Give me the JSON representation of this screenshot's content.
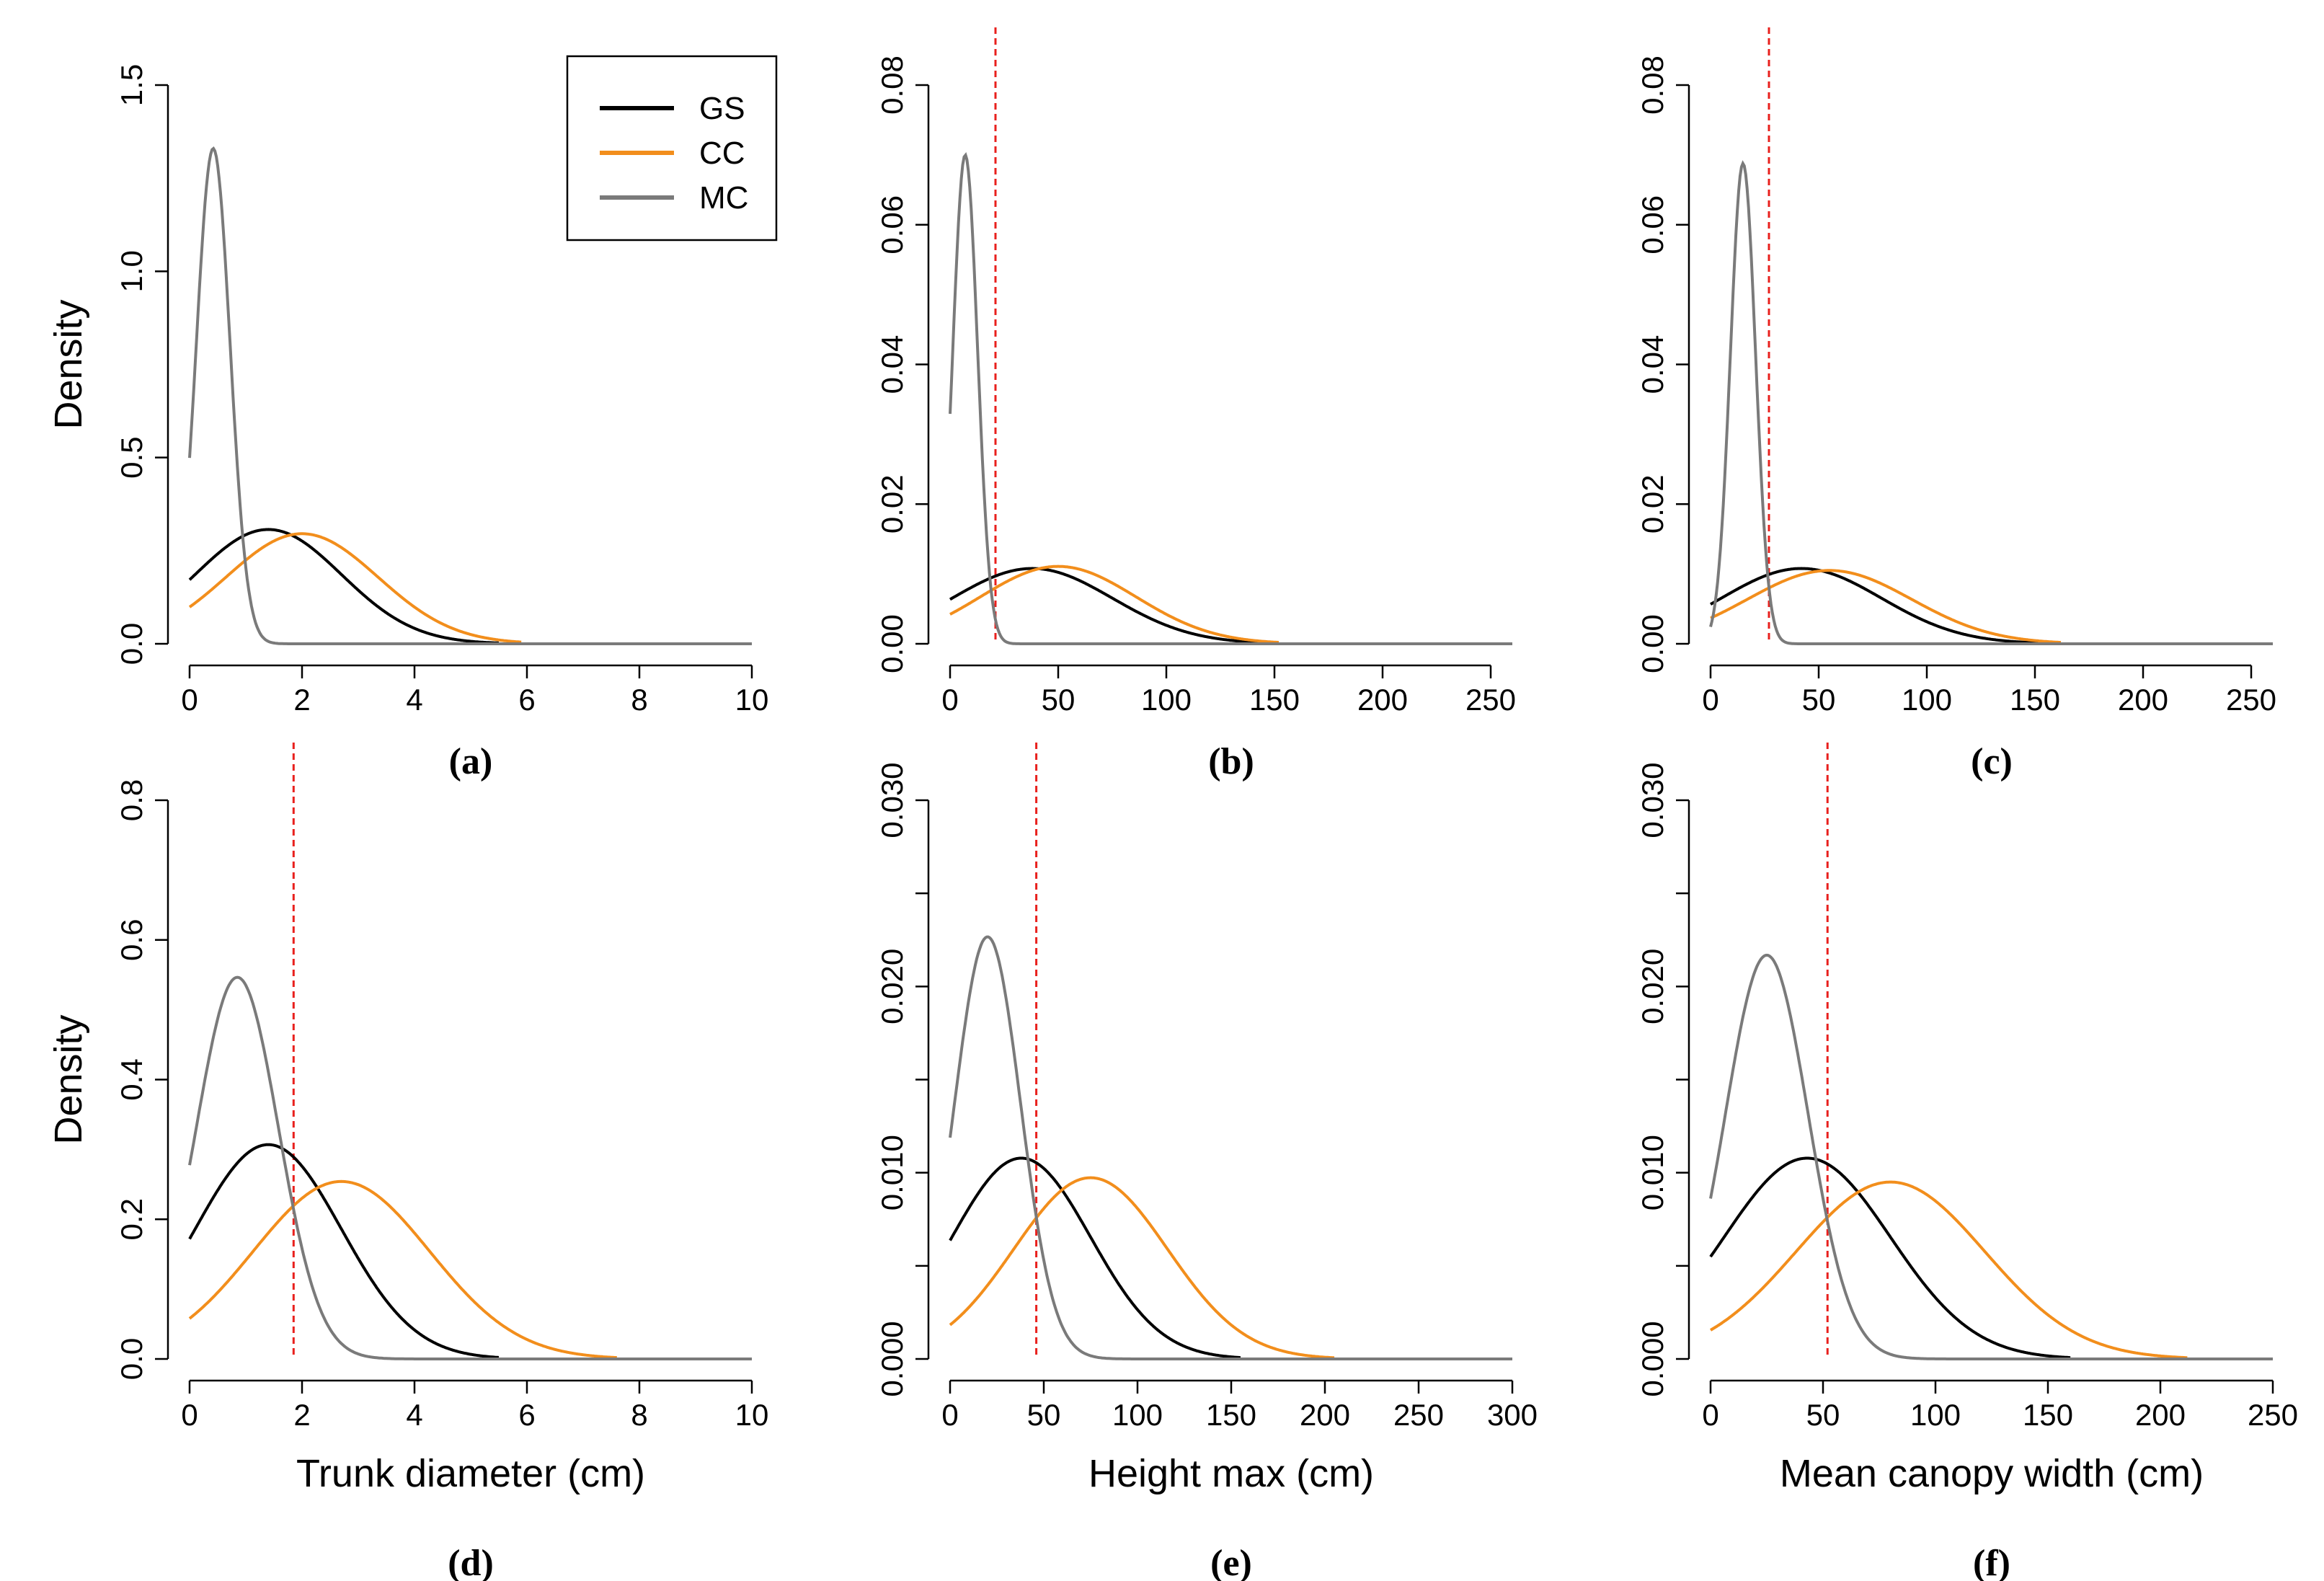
{
  "colors": {
    "GS": "#000000",
    "CC": "#f28e1c",
    "MC": "#7a7a7a",
    "threshold": "#e8201d"
  },
  "legend": {
    "placement": "top-right of panel (a)",
    "entries": [
      {
        "key": "GS",
        "label": "GS"
      },
      {
        "key": "CC",
        "label": "CC"
      },
      {
        "key": "MC",
        "label": "MC"
      }
    ]
  },
  "chart_data": [
    {
      "type": "line",
      "panel_label": "(a)",
      "xlabel": "",
      "ylabel": "Density",
      "xlim": [
        0,
        10
      ],
      "ylim": [
        0,
        1.5
      ],
      "xticks": [
        0,
        2,
        4,
        6,
        8,
        10
      ],
      "xtick_labels": [
        "0",
        "2",
        "4",
        "6",
        "8",
        "10"
      ],
      "yticks": [
        0,
        0.5,
        1.0,
        1.5
      ],
      "ytick_labels": [
        "0.0",
        "0.5",
        "1.0",
        "1.5"
      ],
      "threshold_x": null,
      "series": [
        {
          "name": "GS",
          "mean": 1.4,
          "sd": 1.3,
          "x_max": 5.5
        },
        {
          "name": "CC",
          "mean": 2.0,
          "sd": 1.35,
          "x_max": 5.9
        },
        {
          "name": "MC",
          "mean": 0.42,
          "sd": 0.3,
          "x_max": 10
        }
      ]
    },
    {
      "type": "line",
      "panel_label": "(b)",
      "xlabel": "",
      "ylabel": "",
      "xlim": [
        0,
        260
      ],
      "ylim": [
        0,
        0.08
      ],
      "xticks": [
        0,
        50,
        100,
        150,
        200,
        250
      ],
      "xtick_labels": [
        "0",
        "50",
        "100",
        "150",
        "200",
        "250"
      ],
      "yticks": [
        0,
        0.02,
        0.04,
        0.06,
        0.08
      ],
      "ytick_labels": [
        "0.00",
        "0.02",
        "0.04",
        "0.06",
        "0.08"
      ],
      "threshold_x": 21,
      "series": [
        {
          "name": "GS",
          "mean": 38,
          "sd": 37,
          "x_max": 150
        },
        {
          "name": "CC",
          "mean": 50,
          "sd": 36,
          "x_max": 152
        },
        {
          "name": "MC",
          "mean": 7,
          "sd": 5.7,
          "x_max": 260
        }
      ]
    },
    {
      "type": "line",
      "panel_label": "(c)",
      "xlabel": "",
      "ylabel": "",
      "xlim": [
        0,
        260
      ],
      "ylim": [
        0,
        0.08
      ],
      "xticks": [
        0,
        50,
        100,
        150,
        200,
        250
      ],
      "xtick_labels": [
        "0",
        "50",
        "100",
        "150",
        "200",
        "250"
      ],
      "yticks": [
        0,
        0.02,
        0.04,
        0.06,
        0.08
      ],
      "ytick_labels": [
        "0.00",
        "0.02",
        "0.04",
        "0.06",
        "0.08"
      ],
      "threshold_x": 27,
      "series": [
        {
          "name": "GS",
          "mean": 42,
          "sd": 37,
          "x_max": 160
        },
        {
          "name": "CC",
          "mean": 55,
          "sd": 38,
          "x_max": 162
        },
        {
          "name": "MC",
          "mean": 15,
          "sd": 5.8,
          "x_max": 260
        }
      ]
    },
    {
      "type": "line",
      "panel_label": "(d)",
      "xlabel": "Trunk diameter (cm)",
      "ylabel": "Density",
      "xlim": [
        0,
        10
      ],
      "ylim": [
        0,
        0.8
      ],
      "xticks": [
        0,
        2,
        4,
        6,
        8,
        10
      ],
      "xtick_labels": [
        "0",
        "2",
        "4",
        "6",
        "8",
        "10"
      ],
      "yticks": [
        0,
        0.2,
        0.4,
        0.6,
        0.8
      ],
      "ytick_labels": [
        "0.0",
        "0.2",
        "0.4",
        "0.6",
        "0.8"
      ],
      "threshold_x": 1.85,
      "series": [
        {
          "name": "GS",
          "mean": 1.4,
          "sd": 1.3,
          "x_max": 5.5
        },
        {
          "name": "CC",
          "mean": 2.7,
          "sd": 1.57,
          "x_max": 7.6
        },
        {
          "name": "MC",
          "mean": 0.85,
          "sd": 0.73,
          "x_max": 10
        }
      ]
    },
    {
      "type": "line",
      "panel_label": "(e)",
      "xlabel": "Height max (cm)",
      "ylabel": "",
      "xlim": [
        0,
        300
      ],
      "ylim": [
        0,
        0.03
      ],
      "xticks": [
        0,
        50,
        100,
        150,
        200,
        250,
        300
      ],
      "xtick_labels": [
        "0",
        "50",
        "100",
        "150",
        "200",
        "250",
        "300"
      ],
      "yticks": [
        0,
        0.005,
        0.01,
        0.015,
        0.02,
        0.025,
        0.03
      ],
      "ytick_labels": [
        "0.000",
        "",
        "0.010",
        "",
        "0.020",
        "",
        "0.030"
      ],
      "threshold_x": 46,
      "series": [
        {
          "name": "GS",
          "mean": 38,
          "sd": 37,
          "x_max": 155
        },
        {
          "name": "CC",
          "mean": 75,
          "sd": 41,
          "x_max": 205
        },
        {
          "name": "MC",
          "mean": 20,
          "sd": 17.6,
          "x_max": 300
        }
      ]
    },
    {
      "type": "line",
      "panel_label": "(f)",
      "xlabel": "Mean canopy width (cm)",
      "ylabel": "",
      "xlim": [
        0,
        250
      ],
      "ylim": [
        0,
        0.03
      ],
      "xticks": [
        0,
        50,
        100,
        150,
        200,
        250
      ],
      "xtick_labels": [
        "0",
        "50",
        "100",
        "150",
        "200",
        "250"
      ],
      "yticks": [
        0,
        0.005,
        0.01,
        0.015,
        0.02,
        0.025,
        0.03
      ],
      "ytick_labels": [
        "0.000",
        "",
        "0.010",
        "",
        "0.020",
        "",
        "0.030"
      ],
      "threshold_x": 52,
      "series": [
        {
          "name": "GS",
          "mean": 43,
          "sd": 37,
          "x_max": 160
        },
        {
          "name": "CC",
          "mean": 80,
          "sd": 42,
          "x_max": 212
        },
        {
          "name": "MC",
          "mean": 25,
          "sd": 18.4,
          "x_max": 250
        }
      ]
    }
  ]
}
